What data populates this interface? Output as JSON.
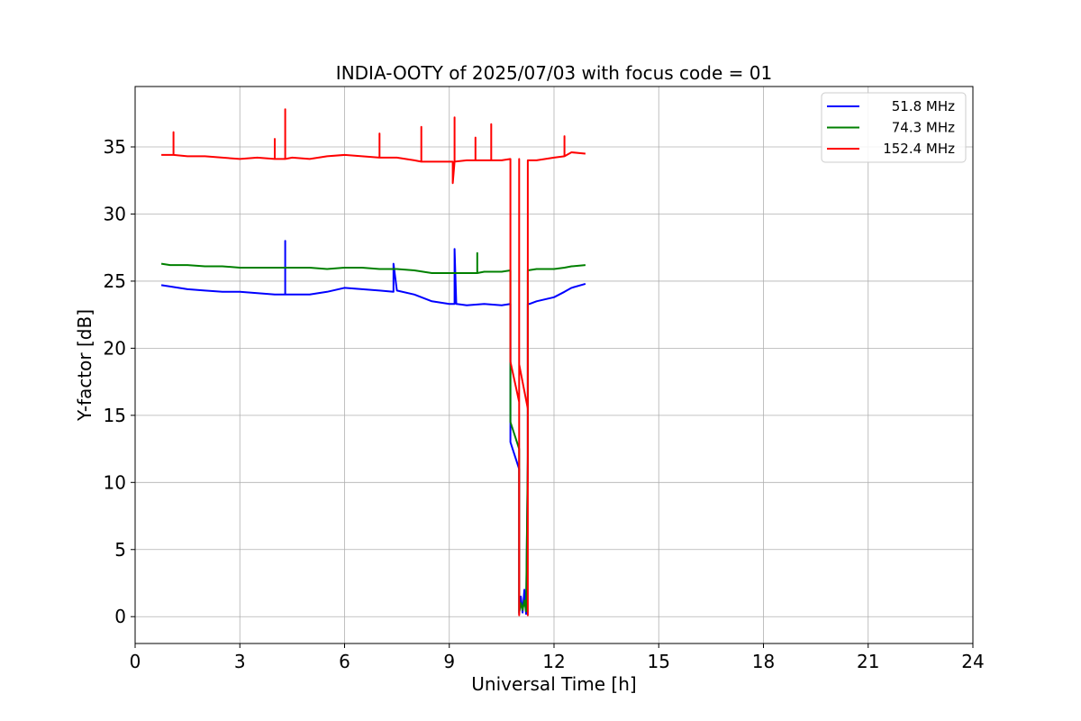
{
  "chart_data": {
    "type": "line",
    "title": "INDIA-OOTY of 2025/07/03 with focus code = 01",
    "xlabel": "Universal Time [h]",
    "ylabel": "Y-factor [dB]",
    "xlim": [
      0,
      24
    ],
    "ylim": [
      -2,
      39.5
    ],
    "xticks": [
      0,
      3,
      6,
      9,
      12,
      15,
      18,
      21,
      24
    ],
    "yticks": [
      0,
      5,
      10,
      15,
      20,
      25,
      30,
      35
    ],
    "grid": true,
    "legend_position": "top-right",
    "series": [
      {
        "name": "51.8 MHz",
        "color": "#0000ff",
        "x": [
          0.75,
          1.0,
          1.5,
          2.0,
          2.5,
          3.0,
          3.5,
          4.0,
          4.3,
          4.3,
          4.3,
          4.5,
          5.0,
          5.5,
          6.0,
          6.5,
          7.0,
          7.4,
          7.4,
          7.5,
          8.0,
          8.5,
          9.0,
          9.15,
          9.15,
          9.2,
          9.5,
          10.0,
          10.5,
          10.75,
          10.75,
          11.0,
          11.0,
          11.05,
          11.1,
          11.15,
          11.2,
          11.25,
          11.25,
          11.3,
          11.5,
          12.0,
          12.3,
          12.5,
          12.9
        ],
        "y": [
          24.7,
          24.6,
          24.4,
          24.3,
          24.2,
          24.2,
          24.1,
          24.0,
          24.0,
          28.0,
          24.0,
          24.0,
          24.0,
          24.2,
          24.5,
          24.4,
          24.3,
          24.2,
          26.3,
          24.3,
          24.0,
          23.5,
          23.3,
          23.3,
          27.4,
          23.3,
          23.2,
          23.3,
          23.2,
          23.3,
          13.0,
          11.0,
          0.2,
          1.5,
          0.3,
          2.0,
          0.2,
          11.5,
          23.3,
          23.3,
          23.5,
          23.8,
          24.2,
          24.5,
          24.8
        ]
      },
      {
        "name": "74.3 MHz",
        "color": "#008000",
        "x": [
          0.75,
          1.0,
          1.5,
          2.0,
          2.5,
          3.0,
          3.5,
          4.0,
          4.3,
          4.5,
          5.0,
          5.5,
          6.0,
          6.5,
          7.0,
          7.5,
          8.0,
          8.5,
          9.0,
          9.5,
          9.8,
          9.8,
          9.8,
          10.0,
          10.5,
          10.75,
          10.75,
          11.0,
          11.0,
          11.05,
          11.1,
          11.15,
          11.2,
          11.25,
          11.25,
          11.5,
          12.0,
          12.3,
          12.5,
          12.9
        ],
        "y": [
          26.3,
          26.2,
          26.2,
          26.1,
          26.1,
          26.0,
          26.0,
          26.0,
          26.0,
          26.0,
          26.0,
          25.9,
          26.0,
          26.0,
          25.9,
          25.9,
          25.8,
          25.6,
          25.6,
          25.6,
          25.6,
          27.1,
          25.6,
          25.7,
          25.7,
          25.8,
          14.5,
          12.5,
          0.3,
          1.0,
          0.5,
          1.2,
          0.4,
          12.0,
          25.8,
          25.9,
          25.9,
          26.0,
          26.1,
          26.2
        ]
      },
      {
        "name": "152.4 MHz",
        "color": "#ff0000",
        "x": [
          0.75,
          1.0,
          1.1,
          1.1,
          1.1,
          1.5,
          2.0,
          2.5,
          3.0,
          3.5,
          4.0,
          4.0,
          4.0,
          4.3,
          4.3,
          4.3,
          4.5,
          5.0,
          5.5,
          6.0,
          6.5,
          7.0,
          7.0,
          7.0,
          7.5,
          8.0,
          8.2,
          8.2,
          8.2,
          8.5,
          9.0,
          9.1,
          9.1,
          9.15,
          9.15,
          9.15,
          9.5,
          9.75,
          9.75,
          9.75,
          10.0,
          10.2,
          10.2,
          10.2,
          10.5,
          10.75,
          10.75,
          11.0,
          11.0,
          11.0,
          11.0,
          11.25,
          11.25,
          11.25,
          11.5,
          12.0,
          12.3,
          12.3,
          12.3,
          12.5,
          12.9
        ],
        "y": [
          34.4,
          34.4,
          34.4,
          36.1,
          34.4,
          34.3,
          34.3,
          34.2,
          34.1,
          34.2,
          34.1,
          35.6,
          34.1,
          34.1,
          37.8,
          34.1,
          34.2,
          34.1,
          34.3,
          34.4,
          34.3,
          34.2,
          36.0,
          34.2,
          34.2,
          34.0,
          33.9,
          36.5,
          33.9,
          33.9,
          33.9,
          33.9,
          32.3,
          33.9,
          37.2,
          33.9,
          34.0,
          34.0,
          35.7,
          34.0,
          34.0,
          34.0,
          36.7,
          34.0,
          34.0,
          34.1,
          19.0,
          16.0,
          0.1,
          34.1,
          18.8,
          15.5,
          0.1,
          34.0,
          34.0,
          34.2,
          34.3,
          35.8,
          34.3,
          34.6,
          34.5
        ]
      }
    ]
  }
}
